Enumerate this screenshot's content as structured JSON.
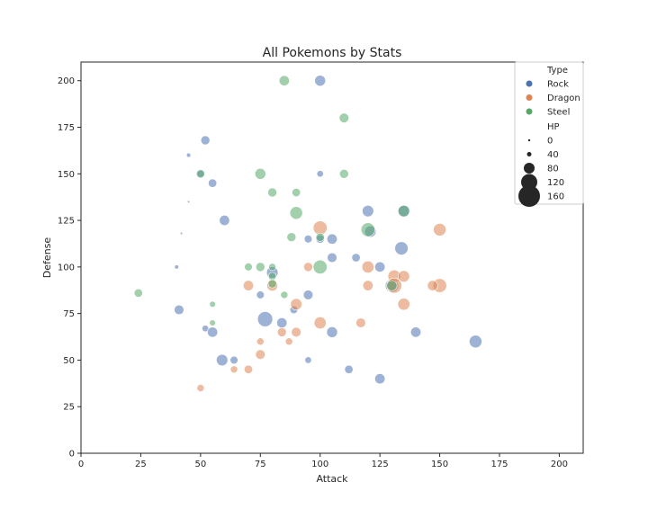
{
  "colors": {
    "Rock": "#4c72b0",
    "Dragon": "#dd8452",
    "Steel": "#55a868"
  },
  "chart_data": {
    "type": "scatter",
    "title": "All Pokemons by Stats",
    "xlabel": "Attack",
    "ylabel": "Defense",
    "xlim": [
      0,
      210
    ],
    "ylim": [
      0,
      210
    ],
    "xticks": [
      0,
      25,
      50,
      75,
      100,
      125,
      150,
      175,
      200
    ],
    "yticks": [
      0,
      25,
      50,
      75,
      100,
      125,
      150,
      175,
      200
    ],
    "grid": false,
    "legend_position": "top-right",
    "hue": "Type",
    "size": "HP",
    "legend": {
      "hue_title": "Type",
      "hue_entries": [
        "Rock",
        "Dragon",
        "Steel"
      ],
      "size_title": "HP",
      "size_entries": [
        0,
        40,
        80,
        120,
        160
      ]
    },
    "series": [
      {
        "name": "Rock",
        "points": [
          {
            "x": 100,
            "y": 200,
            "hp": 75
          },
          {
            "x": 52,
            "y": 168,
            "hp": 60
          },
          {
            "x": 45,
            "y": 160,
            "hp": 20
          },
          {
            "x": 50,
            "y": 150,
            "hp": 45
          },
          {
            "x": 100,
            "y": 150,
            "hp": 40
          },
          {
            "x": 55,
            "y": 145,
            "hp": 55
          },
          {
            "x": 60,
            "y": 125,
            "hp": 70
          },
          {
            "x": 120,
            "y": 130,
            "hp": 80
          },
          {
            "x": 135,
            "y": 130,
            "hp": 85
          },
          {
            "x": 121,
            "y": 119,
            "hp": 80
          },
          {
            "x": 105,
            "y": 115,
            "hp": 70
          },
          {
            "x": 95,
            "y": 115,
            "hp": 50
          },
          {
            "x": 100,
            "y": 115,
            "hp": 55
          },
          {
            "x": 134,
            "y": 110,
            "hp": 95
          },
          {
            "x": 105,
            "y": 105,
            "hp": 65
          },
          {
            "x": 115,
            "y": 105,
            "hp": 55
          },
          {
            "x": 125,
            "y": 100,
            "hp": 70
          },
          {
            "x": 40,
            "y": 100,
            "hp": 20
          },
          {
            "x": 80,
            "y": 97,
            "hp": 80
          },
          {
            "x": 75,
            "y": 85,
            "hp": 50
          },
          {
            "x": 95,
            "y": 85,
            "hp": 65
          },
          {
            "x": 130,
            "y": 90,
            "hp": 95
          },
          {
            "x": 41,
            "y": 77,
            "hp": 65
          },
          {
            "x": 89,
            "y": 77,
            "hp": 50
          },
          {
            "x": 77,
            "y": 72,
            "hp": 110
          },
          {
            "x": 84,
            "y": 70,
            "hp": 70
          },
          {
            "x": 52,
            "y": 67,
            "hp": 40
          },
          {
            "x": 55,
            "y": 65,
            "hp": 70
          },
          {
            "x": 105,
            "y": 65,
            "hp": 75
          },
          {
            "x": 140,
            "y": 65,
            "hp": 70
          },
          {
            "x": 165,
            "y": 60,
            "hp": 90
          },
          {
            "x": 59,
            "y": 50,
            "hp": 80
          },
          {
            "x": 64,
            "y": 50,
            "hp": 50
          },
          {
            "x": 95,
            "y": 50,
            "hp": 40
          },
          {
            "x": 112,
            "y": 45,
            "hp": 55
          },
          {
            "x": 125,
            "y": 40,
            "hp": 70
          },
          {
            "x": 42,
            "y": 118,
            "hp": 5
          },
          {
            "x": 45,
            "y": 135,
            "hp": 5
          }
        ]
      },
      {
        "name": "Dragon",
        "points": [
          {
            "x": 100,
            "y": 121,
            "hp": 100
          },
          {
            "x": 150,
            "y": 120,
            "hp": 90
          },
          {
            "x": 95,
            "y": 100,
            "hp": 60
          },
          {
            "x": 120,
            "y": 100,
            "hp": 85
          },
          {
            "x": 131,
            "y": 95,
            "hp": 90
          },
          {
            "x": 135,
            "y": 95,
            "hp": 80
          },
          {
            "x": 150,
            "y": 90,
            "hp": 100
          },
          {
            "x": 147,
            "y": 90,
            "hp": 70
          },
          {
            "x": 120,
            "y": 90,
            "hp": 70
          },
          {
            "x": 131,
            "y": 90,
            "hp": 110
          },
          {
            "x": 70,
            "y": 90,
            "hp": 70
          },
          {
            "x": 80,
            "y": 90,
            "hp": 75
          },
          {
            "x": 135,
            "y": 80,
            "hp": 85
          },
          {
            "x": 90,
            "y": 80,
            "hp": 80
          },
          {
            "x": 100,
            "y": 70,
            "hp": 85
          },
          {
            "x": 117,
            "y": 70,
            "hp": 65
          },
          {
            "x": 84,
            "y": 65,
            "hp": 60
          },
          {
            "x": 90,
            "y": 65,
            "hp": 65
          },
          {
            "x": 75,
            "y": 60,
            "hp": 45
          },
          {
            "x": 87,
            "y": 60,
            "hp": 45
          },
          {
            "x": 75,
            "y": 53,
            "hp": 65
          },
          {
            "x": 64,
            "y": 45,
            "hp": 45
          },
          {
            "x": 70,
            "y": 45,
            "hp": 55
          },
          {
            "x": 50,
            "y": 35,
            "hp": 45
          }
        ]
      },
      {
        "name": "Steel",
        "points": [
          {
            "x": 85,
            "y": 200,
            "hp": 70
          },
          {
            "x": 110,
            "y": 180,
            "hp": 65
          },
          {
            "x": 50,
            "y": 150,
            "hp": 55
          },
          {
            "x": 75,
            "y": 150,
            "hp": 75
          },
          {
            "x": 110,
            "y": 150,
            "hp": 60
          },
          {
            "x": 80,
            "y": 140,
            "hp": 60
          },
          {
            "x": 90,
            "y": 140,
            "hp": 55
          },
          {
            "x": 90,
            "y": 129,
            "hp": 90
          },
          {
            "x": 135,
            "y": 130,
            "hp": 80
          },
          {
            "x": 120,
            "y": 120,
            "hp": 100
          },
          {
            "x": 88,
            "y": 116,
            "hp": 60
          },
          {
            "x": 100,
            "y": 116,
            "hp": 55
          },
          {
            "x": 70,
            "y": 100,
            "hp": 50
          },
          {
            "x": 75,
            "y": 100,
            "hp": 60
          },
          {
            "x": 80,
            "y": 100,
            "hp": 45
          },
          {
            "x": 100,
            "y": 100,
            "hp": 100
          },
          {
            "x": 80,
            "y": 95,
            "hp": 50
          },
          {
            "x": 80,
            "y": 91,
            "hp": 55
          },
          {
            "x": 85,
            "y": 85,
            "hp": 45
          },
          {
            "x": 24,
            "y": 86,
            "hp": 55
          },
          {
            "x": 55,
            "y": 80,
            "hp": 35
          },
          {
            "x": 55,
            "y": 70,
            "hp": 35
          },
          {
            "x": 130,
            "y": 90,
            "hp": 70
          }
        ]
      }
    ]
  }
}
